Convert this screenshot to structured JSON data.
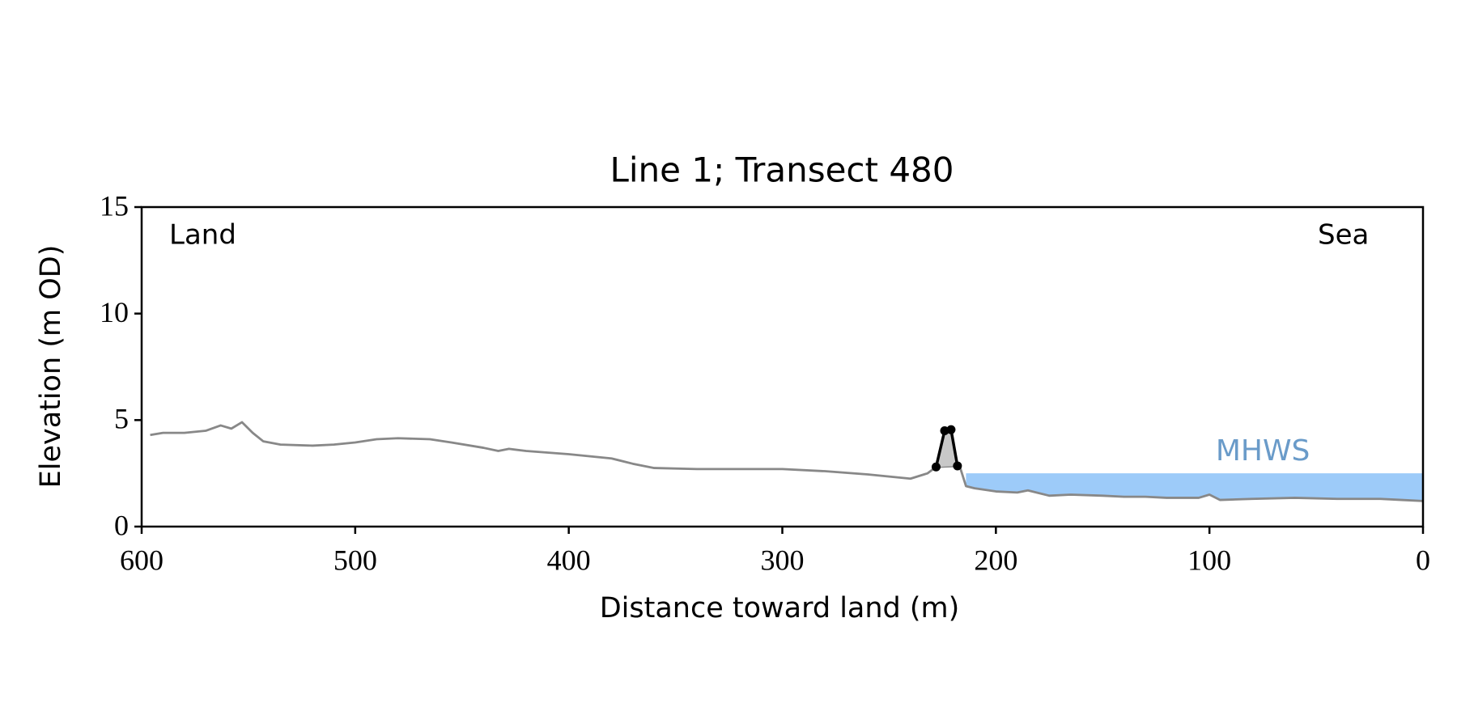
{
  "chart_data": {
    "type": "line",
    "title": "Line 1; Transect 480",
    "xlabel": "Distance toward land (m)",
    "ylabel": "Elevation (m OD)",
    "xlim": [
      600,
      0
    ],
    "ylim": [
      0,
      15
    ],
    "xticks": [
      600,
      500,
      400,
      300,
      200,
      100,
      0
    ],
    "yticks": [
      0,
      5,
      10,
      15
    ],
    "annotations": [
      "Land",
      "Sea"
    ],
    "mhws": {
      "label": "MHWS",
      "value": 2.5,
      "x": [
        214,
        0
      ],
      "color": "#9dcbf9",
      "label_color": "#6a9bc9"
    },
    "series": [
      {
        "color": "#888888",
        "markers": false,
        "x": [
          596,
          590,
          580,
          570,
          563,
          558,
          553,
          548,
          543,
          535,
          520,
          510,
          500,
          490,
          480,
          465,
          455,
          440,
          433,
          428,
          420,
          400,
          380,
          370,
          360,
          340,
          320,
          300,
          280,
          260,
          240,
          232,
          228,
          217,
          214,
          210,
          200,
          190,
          185,
          175,
          165,
          150,
          140,
          130,
          120,
          105,
          100,
          95,
          80,
          60,
          40,
          20,
          10,
          0
        ],
        "values": [
          4.3,
          4.4,
          4.4,
          4.5,
          4.75,
          4.6,
          4.9,
          4.4,
          4.0,
          3.85,
          3.8,
          3.85,
          3.95,
          4.1,
          4.15,
          4.1,
          3.95,
          3.7,
          3.55,
          3.65,
          3.55,
          3.4,
          3.2,
          2.95,
          2.75,
          2.7,
          2.7,
          2.7,
          2.6,
          2.45,
          2.25,
          2.5,
          2.8,
          2.85,
          1.9,
          1.8,
          1.65,
          1.6,
          1.7,
          1.45,
          1.5,
          1.45,
          1.4,
          1.4,
          1.35,
          1.35,
          1.5,
          1.25,
          1.3,
          1.35,
          1.3,
          1.3,
          1.25,
          1.2
        ]
      },
      {
        "color": "#000000",
        "markers": true,
        "fill": "#c8c8c8",
        "x": [
          228,
          224,
          221,
          218
        ],
        "values": [
          2.8,
          4.5,
          4.55,
          2.85
        ]
      }
    ]
  }
}
